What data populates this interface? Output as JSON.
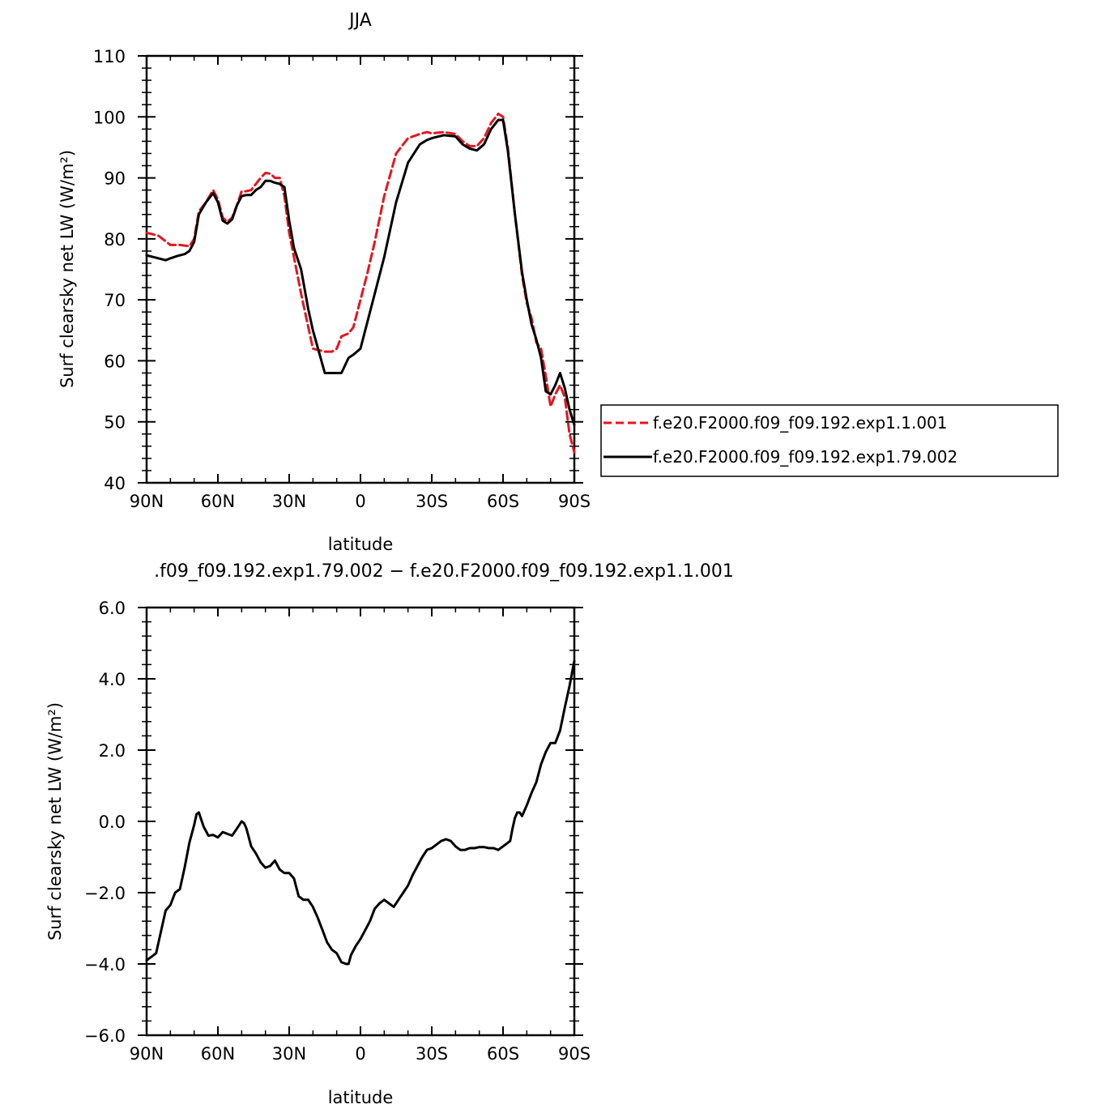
{
  "chart_data": [
    {
      "type": "line",
      "title": "JJA",
      "xlabel": "latitude",
      "ylabel": "Surf clearsky net LW (W/m²)",
      "xlim": [
        90,
        -90
      ],
      "ylim": [
        40,
        110
      ],
      "xticks": [
        {
          "value": 90,
          "label": "90N"
        },
        {
          "value": 60,
          "label": "60N"
        },
        {
          "value": 30,
          "label": "30N"
        },
        {
          "value": 0,
          "label": "0"
        },
        {
          "value": -30,
          "label": "30S"
        },
        {
          "value": -60,
          "label": "60S"
        },
        {
          "value": -90,
          "label": "90S"
        }
      ],
      "yticks": [
        {
          "value": 40,
          "label": "40"
        },
        {
          "value": 50,
          "label": "50"
        },
        {
          "value": 60,
          "label": "60"
        },
        {
          "value": 70,
          "label": "70"
        },
        {
          "value": 80,
          "label": "80"
        },
        {
          "value": 90,
          "label": "90"
        },
        {
          "value": 100,
          "label": "100"
        },
        {
          "value": 110,
          "label": "110"
        }
      ],
      "legend_position": "right",
      "series": [
        {
          "name": "f.e20.F2000.f09_f09.192.exp1.1.001",
          "color": "#e8141e",
          "dash": "dashed",
          "x": [
            90,
            85,
            80,
            76,
            72,
            70,
            68,
            65,
            62,
            60,
            58,
            56,
            54,
            52,
            50,
            48,
            46,
            44,
            42,
            40,
            38,
            36,
            34,
            32,
            30,
            28,
            25,
            20,
            15,
            12,
            10,
            8,
            5,
            3,
            0,
            -3,
            -6,
            -10,
            -15,
            -20,
            -25,
            -28,
            -30,
            -35,
            -40,
            -43,
            -46,
            -49,
            -52,
            -55,
            -58,
            -60,
            -62,
            -65,
            -68,
            -70,
            -72,
            -74,
            -76,
            -78,
            -80,
            -82,
            -84,
            -86,
            -88,
            -90
          ],
          "y": [
            81.0,
            80.5,
            79.0,
            79.0,
            78.8,
            80.0,
            84.5,
            86.0,
            88.0,
            86.5,
            83.5,
            82.8,
            83.5,
            85.5,
            87.8,
            87.8,
            88.0,
            89.0,
            90.0,
            90.8,
            90.7,
            90.0,
            90.0,
            87.0,
            81.0,
            77.0,
            71.0,
            62.0,
            61.5,
            61.5,
            62.0,
            64.0,
            64.5,
            65.5,
            70.0,
            74.5,
            79.5,
            87.0,
            94.0,
            96.5,
            97.2,
            97.5,
            97.3,
            97.5,
            97.2,
            96.0,
            95.2,
            95.2,
            96.5,
            99.0,
            100.5,
            100.0,
            95.0,
            84.0,
            74.0,
            69.5,
            67.0,
            63.0,
            62.0,
            57.5,
            52.5,
            54.5,
            56.0,
            54.0,
            48.0,
            45.0
          ]
        },
        {
          "name": "f.e20.F2000.f09_f09.192.exp1.79.002",
          "color": "#000000",
          "dash": "solid",
          "x": [
            90,
            87,
            85,
            82,
            80,
            77,
            74,
            72,
            70,
            68,
            65,
            62,
            60,
            58,
            56,
            54,
            52,
            50,
            48,
            46,
            44,
            42,
            40,
            38,
            36,
            34,
            32,
            30,
            28,
            25,
            22,
            20,
            15,
            12,
            10,
            8,
            5,
            3,
            0,
            -3,
            -6,
            -10,
            -15,
            -20,
            -25,
            -28,
            -30,
            -35,
            -40,
            -43,
            -46,
            -49,
            -52,
            -55,
            -58,
            -60,
            -62,
            -65,
            -68,
            -70,
            -72,
            -74,
            -76,
            -78,
            -80,
            -82,
            -84,
            -86,
            -88,
            -90
          ],
          "y": [
            77.3,
            77.0,
            76.8,
            76.5,
            76.8,
            77.2,
            77.5,
            78.0,
            79.5,
            84.0,
            86.0,
            87.5,
            86.0,
            83.0,
            82.5,
            83.2,
            85.5,
            87.0,
            87.2,
            87.2,
            88.0,
            88.5,
            89.5,
            89.5,
            89.2,
            89.0,
            88.5,
            83.0,
            78.5,
            75.0,
            68.5,
            65.0,
            58.0,
            58.0,
            58.0,
            58.0,
            60.5,
            61.0,
            62.0,
            66.5,
            71.0,
            77.0,
            86.0,
            92.5,
            95.5,
            96.2,
            96.5,
            97.0,
            96.8,
            95.5,
            94.8,
            94.5,
            95.5,
            98.0,
            99.5,
            99.5,
            94.5,
            84.0,
            74.5,
            70.0,
            66.0,
            63.5,
            60.5,
            55.0,
            54.5,
            56.0,
            58.0,
            55.5,
            52.0,
            49.5
          ]
        }
      ]
    },
    {
      "type": "line",
      "title": ".f09_f09.192.exp1.79.002 − f.e20.F2000.f09_f09.192.exp1.1.001",
      "xlabel": "latitude",
      "ylabel": "Surf clearsky net LW (W/m²)",
      "xlim": [
        90,
        -90
      ],
      "ylim": [
        -6.0,
        6.0
      ],
      "xticks": [
        {
          "value": 90,
          "label": "90N"
        },
        {
          "value": 60,
          "label": "60N"
        },
        {
          "value": 30,
          "label": "30N"
        },
        {
          "value": 0,
          "label": "0"
        },
        {
          "value": -30,
          "label": "30S"
        },
        {
          "value": -60,
          "label": "60S"
        },
        {
          "value": -90,
          "label": "90S"
        }
      ],
      "yticks": [
        {
          "value": -6.0,
          "label": "−6.0"
        },
        {
          "value": -4.0,
          "label": "−4.0"
        },
        {
          "value": -2.0,
          "label": "−2.0"
        },
        {
          "value": 0.0,
          "label": "0.0"
        },
        {
          "value": 2.0,
          "label": "2.0"
        },
        {
          "value": 4.0,
          "label": "4.0"
        },
        {
          "value": 6.0,
          "label": "6.0"
        }
      ],
      "series": [
        {
          "color": "#000000",
          "dash": "solid",
          "x": [
            90,
            88,
            86,
            84,
            82,
            80,
            78,
            76,
            74,
            72,
            70,
            69,
            68,
            66,
            64,
            62,
            60,
            58,
            56,
            54,
            52,
            50,
            49,
            48,
            46,
            44,
            42,
            40,
            38,
            36,
            34,
            32,
            30,
            28,
            26,
            24,
            22,
            20,
            18,
            16,
            14,
            12,
            10,
            8,
            6,
            5,
            4,
            2,
            0,
            -2,
            -4,
            -6,
            -8,
            -10,
            -12,
            -14,
            -16,
            -18,
            -20,
            -22,
            -24,
            -26,
            -28,
            -30,
            -32,
            -34,
            -36,
            -38,
            -40,
            -42,
            -44,
            -46,
            -48,
            -50,
            -52,
            -54,
            -56,
            -58,
            -60,
            -62,
            -63,
            -64,
            -65,
            -66,
            -67,
            -68,
            -70,
            -72,
            -74,
            -76,
            -78,
            -80,
            -82,
            -84,
            -86,
            -88,
            -90
          ],
          "y": [
            -3.9,
            -3.8,
            -3.7,
            -3.1,
            -2.5,
            -2.35,
            -2.0,
            -1.9,
            -1.3,
            -0.6,
            -0.1,
            0.2,
            0.25,
            -0.15,
            -0.4,
            -0.38,
            -0.45,
            -0.3,
            -0.35,
            -0.4,
            -0.2,
            0.0,
            -0.05,
            -0.2,
            -0.7,
            -0.9,
            -1.15,
            -1.3,
            -1.25,
            -1.1,
            -1.35,
            -1.45,
            -1.45,
            -1.6,
            -2.1,
            -2.2,
            -2.2,
            -2.4,
            -2.7,
            -3.05,
            -3.4,
            -3.6,
            -3.7,
            -3.95,
            -4.0,
            -4.0,
            -3.75,
            -3.5,
            -3.3,
            -3.05,
            -2.8,
            -2.45,
            -2.3,
            -2.2,
            -2.3,
            -2.4,
            -2.2,
            -2.0,
            -1.8,
            -1.5,
            -1.25,
            -1.0,
            -0.8,
            -0.75,
            -0.65,
            -0.55,
            -0.5,
            -0.55,
            -0.7,
            -0.8,
            -0.8,
            -0.75,
            -0.75,
            -0.72,
            -0.72,
            -0.75,
            -0.75,
            -0.8,
            -0.7,
            -0.6,
            -0.55,
            -0.2,
            0.1,
            0.25,
            0.25,
            0.15,
            0.45,
            0.8,
            1.1,
            1.6,
            1.95,
            2.2,
            2.2,
            2.55,
            3.2,
            3.8,
            4.5
          ]
        }
      ]
    }
  ]
}
